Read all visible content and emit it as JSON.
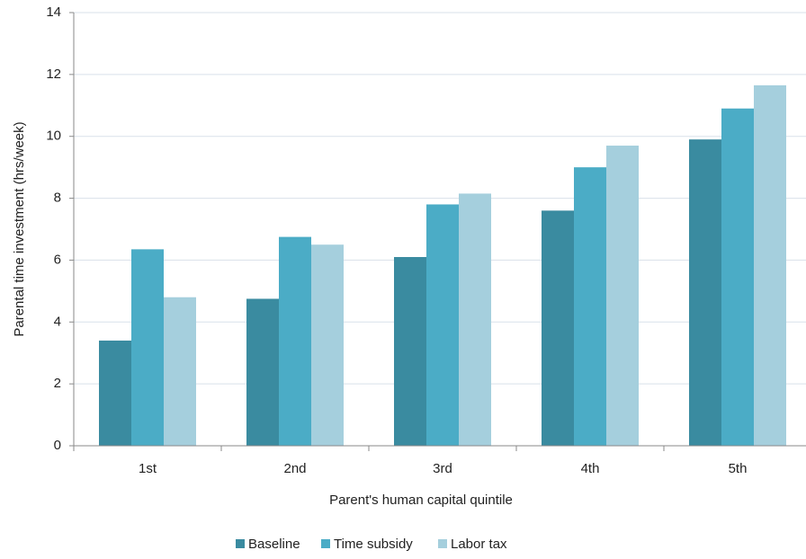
{
  "chart_data": {
    "type": "bar",
    "x_label": "Parent's human capital quintile",
    "y_label": "Parental time investment (hrs/week)",
    "categories": [
      "1st",
      "2nd",
      "3rd",
      "4th",
      "5th"
    ],
    "series": [
      {
        "name": "Baseline",
        "color": "#3a8ba0",
        "values": [
          3.4,
          4.75,
          6.1,
          7.6,
          9.9
        ]
      },
      {
        "name": "Time subsidy",
        "color": "#4bacc6",
        "values": [
          6.35,
          6.75,
          7.8,
          9.0,
          10.9
        ]
      },
      {
        "name": "Labor tax",
        "color": "#a5cfdd",
        "values": [
          4.8,
          6.5,
          8.15,
          9.7,
          11.65
        ]
      }
    ],
    "ylim": [
      0,
      14
    ],
    "yticks": [
      0,
      2,
      4,
      6,
      8,
      10,
      12,
      14
    ],
    "grid": true,
    "legend": "bottom"
  }
}
